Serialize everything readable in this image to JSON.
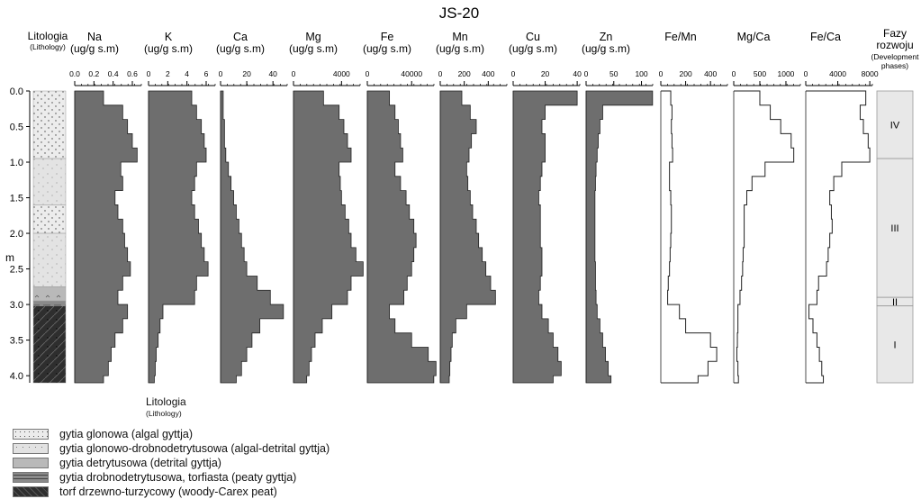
{
  "chart_data": {
    "type": "area",
    "title": "JS-20",
    "depth_axis": {
      "label": "m",
      "ticks": [
        "0.0",
        "0.5",
        "1.0",
        "1.5",
        "2.0",
        "2.5",
        "3.0",
        "3.5",
        "4.0"
      ],
      "range": [
        0,
        4.1
      ]
    },
    "lithology": {
      "title": "Litologia",
      "subtitle": "(Lithology)",
      "units": [
        {
          "from": 0.0,
          "to": 0.95,
          "type": "algal"
        },
        {
          "from": 0.95,
          "to": 1.6,
          "type": "algal-detrital"
        },
        {
          "from": 1.6,
          "to": 2.0,
          "type": "algal"
        },
        {
          "from": 2.0,
          "to": 2.75,
          "type": "algal-detrital"
        },
        {
          "from": 2.75,
          "to": 2.95,
          "type": "detrital"
        },
        {
          "from": 2.95,
          "to": 3.02,
          "type": "peaty"
        },
        {
          "from": 3.02,
          "to": 4.1,
          "type": "peat"
        }
      ]
    },
    "depths": [
      0.0,
      0.2,
      0.4,
      0.6,
      0.8,
      1.0,
      1.2,
      1.4,
      1.6,
      1.8,
      2.0,
      2.2,
      2.4,
      2.6,
      2.8,
      3.0,
      3.2,
      3.4,
      3.6,
      3.8,
      4.0
    ],
    "panels": [
      {
        "id": "na",
        "name": "Na",
        "unit": "(ug/g s.m)",
        "ticks": [
          "0.0",
          "0.2",
          "0.4",
          "0.6"
        ],
        "max": 0.75,
        "filled": true,
        "values": [
          0.3,
          0.5,
          0.55,
          0.6,
          0.65,
          0.48,
          0.5,
          0.42,
          0.45,
          0.5,
          0.52,
          0.55,
          0.58,
          0.5,
          0.45,
          0.55,
          0.5,
          0.42,
          0.38,
          0.35,
          0.3
        ]
      },
      {
        "id": "k",
        "name": "K",
        "unit": "(ug/g s.m)",
        "ticks": [
          "0",
          "2",
          "4",
          "6"
        ],
        "max": 7.5,
        "filled": true,
        "values": [
          4.5,
          5.0,
          5.5,
          5.8,
          6.0,
          5.0,
          4.8,
          4.5,
          4.8,
          5.2,
          5.5,
          5.8,
          6.2,
          5.0,
          4.8,
          1.5,
          1.2,
          1.0,
          0.8,
          0.7,
          0.6
        ]
      },
      {
        "id": "ca",
        "name": "Ca",
        "unit": "(ug/g s.m)",
        "ticks": [
          "0",
          "20",
          "40"
        ],
        "max": 55,
        "filled": true,
        "values": [
          2,
          2,
          3,
          3,
          4,
          6,
          8,
          10,
          12,
          14,
          16,
          18,
          20,
          28,
          38,
          48,
          30,
          24,
          20,
          16,
          12
        ]
      },
      {
        "id": "mg",
        "name": "Mg",
        "unit": "(ug/g s.m)",
        "ticks": [
          "0",
          "4000"
        ],
        "max": 6000,
        "filled": true,
        "values": [
          2500,
          3800,
          4200,
          4500,
          4800,
          3800,
          3900,
          4000,
          4300,
          4600,
          4800,
          5200,
          5800,
          4800,
          4500,
          3200,
          2400,
          1800,
          1500,
          1300,
          1100
        ]
      },
      {
        "id": "fe",
        "name": "Fe",
        "unit": "(ug/g s.m)",
        "ticks": [
          "0",
          "40000"
        ],
        "max": 65000,
        "filled": true,
        "values": [
          20000,
          25000,
          28000,
          30000,
          32000,
          25000,
          30000,
          35000,
          38000,
          42000,
          44000,
          42000,
          40000,
          36000,
          33000,
          20000,
          25000,
          40000,
          55000,
          62000,
          60000
        ]
      },
      {
        "id": "mn",
        "name": "Mn",
        "unit": "(ug/g s.m)",
        "ticks": [
          "0",
          "200",
          "400"
        ],
        "max": 600,
        "filled": true,
        "values": [
          180,
          250,
          300,
          260,
          240,
          220,
          230,
          250,
          270,
          300,
          320,
          350,
          380,
          420,
          460,
          220,
          130,
          100,
          90,
          80,
          75
        ]
      },
      {
        "id": "cu",
        "name": "Cu",
        "unit": "(ug/g s.m)",
        "ticks": [
          "0",
          "20",
          "40"
        ],
        "max": 45,
        "filled": true,
        "values": [
          40,
          20,
          18,
          20,
          20,
          18,
          17,
          16,
          17,
          17,
          17,
          18,
          18,
          17,
          16,
          18,
          22,
          25,
          28,
          30,
          25
        ]
      },
      {
        "id": "zn",
        "name": "Zn",
        "unit": "(ug/g s.m)",
        "ticks": [
          "0",
          "50",
          "100"
        ],
        "max": 130,
        "filled": true,
        "values": [
          120,
          30,
          25,
          22,
          20,
          18,
          17,
          16,
          16,
          16,
          16,
          16,
          17,
          17,
          18,
          20,
          25,
          30,
          35,
          40,
          45
        ]
      },
      {
        "id": "femn",
        "name": "Fe/Mn",
        "unit": "",
        "ticks": [
          "0",
          "200",
          "400"
        ],
        "max": 580,
        "filled": false,
        "values": [
          80,
          90,
          85,
          90,
          95,
          70,
          70,
          80,
          85,
          85,
          80,
          75,
          70,
          60,
          55,
          150,
          200,
          400,
          450,
          380,
          300
        ]
      },
      {
        "id": "mgca",
        "name": "Mg/Ca",
        "unit": "",
        "ticks": [
          "0",
          "500",
          "1000"
        ],
        "max": 1380,
        "filled": false,
        "values": [
          500,
          700,
          900,
          1100,
          1150,
          600,
          350,
          250,
          200,
          200,
          200,
          180,
          170,
          150,
          120,
          80,
          80,
          70,
          60,
          80,
          90
        ]
      },
      {
        "id": "feca",
        "name": "Fe/Ca",
        "unit": "",
        "ticks": [
          "0",
          "4000",
          "8000"
        ],
        "max": 9000,
        "filled": false,
        "values": [
          7500,
          6800,
          7200,
          7800,
          8000,
          4500,
          3500,
          3000,
          3200,
          3300,
          3000,
          2800,
          2600,
          1600,
          1400,
          400,
          900,
          1400,
          1700,
          2000,
          2200
        ]
      }
    ],
    "phases": {
      "title": [
        "Fazy",
        "rozwoju"
      ],
      "subtitle": [
        "(Development",
        "phases)"
      ],
      "items": [
        {
          "label": "IV",
          "from": 0.0,
          "to": 0.95
        },
        {
          "label": "III",
          "from": 0.95,
          "to": 2.9
        },
        {
          "label": "II",
          "from": 2.9,
          "to": 3.02
        },
        {
          "label": "I",
          "from": 3.02,
          "to": 4.1
        }
      ]
    }
  },
  "legend": {
    "title": "Litologia",
    "subtitle": "(Lithology)",
    "items": [
      {
        "key": "algal",
        "label": "gytia glonowa (algal gyttja)"
      },
      {
        "key": "algal-detrital",
        "label": "gytia glonowo-drobnodetrytusowa (algal-detrital gyttja)"
      },
      {
        "key": "detrital",
        "label": "gytia detrytusowa (detrital gyttja)"
      },
      {
        "key": "peaty",
        "label": "gytia drobnodetrytusowa, torfiasta (peaty gyttja)"
      },
      {
        "key": "peat",
        "label": "torf drzewno-turzycowy (woody-Carex peat)"
      }
    ]
  },
  "colors": {
    "fill": "#6e6e6e",
    "phase_bg": "#e8e8e8",
    "algal": "#e9e9e9",
    "algal_detrital": "#e2e2e2",
    "detrital": "#b9b9b9",
    "peaty": "#8c8c8c",
    "peat": "#2f2f2f"
  }
}
